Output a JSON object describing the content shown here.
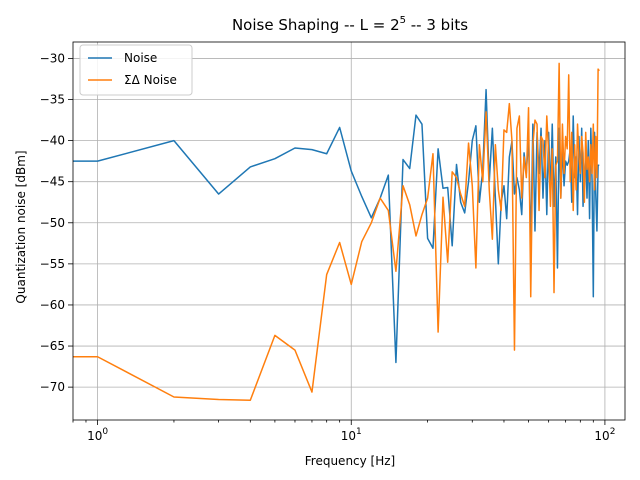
{
  "chart_data": {
    "type": "line",
    "title": "Noise Shaping -- L = 2",
    "title_exponent": "5",
    "title_suffix": " -- 3 bits",
    "xlabel": "Frequency [Hz]",
    "ylabel": "Quantization noise [dBm]",
    "xscale": "log",
    "xlim": [
      0.8,
      120
    ],
    "ylim": [
      -74,
      -28
    ],
    "x_ticks": [
      {
        "value": 1,
        "base": "10",
        "exp": "0"
      },
      {
        "value": 10,
        "base": "10",
        "exp": "1"
      },
      {
        "value": 100,
        "base": "10",
        "exp": "2"
      }
    ],
    "y_ticks": [
      -30,
      -35,
      -40,
      -45,
      -50,
      -55,
      -60,
      -65,
      -70
    ],
    "y_tick_labels": [
      "−30",
      "−35",
      "−40",
      "−45",
      "−50",
      "−55",
      "−60",
      "−65",
      "−70"
    ],
    "grid": true,
    "legend_position": "upper-left",
    "x": [
      0.8,
      1,
      2,
      3,
      4,
      5,
      6,
      7,
      8,
      9,
      10,
      11,
      12,
      13,
      14,
      15,
      16,
      17,
      18,
      19,
      20,
      21,
      22,
      23,
      24,
      25,
      26,
      27,
      28,
      29,
      30,
      31,
      32,
      33,
      34,
      35,
      36,
      37,
      38,
      39,
      40,
      41,
      42,
      43,
      44,
      45,
      46,
      47,
      48,
      49,
      50,
      51,
      52,
      53,
      54,
      55,
      56,
      57,
      58,
      59,
      60,
      61,
      62,
      63,
      64,
      65,
      66,
      67,
      68,
      69,
      70,
      71,
      72,
      73,
      74,
      75,
      76,
      77,
      78,
      79,
      80,
      81,
      82,
      83,
      84,
      85,
      86,
      87,
      88,
      89,
      90,
      91,
      92,
      93,
      94,
      95
    ],
    "series": [
      {
        "name": "Noise",
        "color": "#1f77b4",
        "values": [
          -42.5,
          -42.5,
          -40,
          -46.5,
          -43.2,
          -42.2,
          -40.9,
          -41.1,
          -41.6,
          -38.4,
          -43.7,
          -46.8,
          -49.4,
          -47.0,
          -44.2,
          -67.0,
          -42.3,
          -43.4,
          -36.9,
          -38.0,
          -51.9,
          -53.1,
          -41.0,
          -45.8,
          -45.7,
          -52.8,
          -42.9,
          -47.5,
          -48.8,
          -45.0,
          -40.0,
          -38.2,
          -47.5,
          -43.5,
          -33.8,
          -45.0,
          -38.5,
          -47.0,
          -55.0,
          -47.5,
          -45.5,
          -49.5,
          -42.0,
          -40.1,
          -46.5,
          -44.5,
          -46.0,
          -49.0,
          -41.5,
          -44.0,
          -39.5,
          -53.0,
          -38.0,
          -51.0,
          -39.0,
          -44.0,
          -38.5,
          -47.0,
          -40.0,
          -49.0,
          -39.0,
          -46.5,
          -38.0,
          -48.0,
          -42.0,
          -55.5,
          -38.5,
          -47.0,
          -40.5,
          -45.5,
          -42.5,
          -43.0,
          -42.5,
          -41.0,
          -47.5,
          -37.0,
          -44.5,
          -42.0,
          -49.0,
          -39.5,
          -45.0,
          -38.5,
          -48.0,
          -44.0,
          -42.0,
          -47.0,
          -40.0,
          -49.5,
          -38.5,
          -45.0,
          -59.0,
          -39.0,
          -46.5,
          -51.0,
          -43.0,
          -43.0
        ]
      },
      {
        "name": "ΣΔ Noise",
        "color": "#ff7f0e",
        "values": [
          -66.3,
          -66.3,
          -71.2,
          -71.5,
          -71.6,
          -63.7,
          -65.5,
          -70.6,
          -56.3,
          -52.4,
          -57.5,
          -52.3,
          -50.0,
          -47.0,
          -48.5,
          -55.9,
          -45.5,
          -47.8,
          -51.6,
          -49.0,
          -47.0,
          -41.6,
          -63.3,
          -46.9,
          -54.8,
          -43.8,
          -44.5,
          -46.5,
          -48.0,
          -40.3,
          -45.5,
          -55.5,
          -40.5,
          -45.0,
          -36.5,
          -46.0,
          -52.0,
          -40.5,
          -46.0,
          -48.5,
          -38.7,
          -39.0,
          -35.5,
          -40.0,
          -65.5,
          -38.5,
          -37.0,
          -47.0,
          -42.0,
          -44.5,
          -36.0,
          -59.0,
          -40.5,
          -37.5,
          -38.0,
          -48.5,
          -39.5,
          -40.0,
          -44.5,
          -37.0,
          -41.5,
          -48.0,
          -41.0,
          -58.5,
          -43.0,
          -42.5,
          -30.6,
          -47.0,
          -38.0,
          -44.0,
          -39.5,
          -41.0,
          -32.0,
          -45.0,
          -39.0,
          -48.5,
          -40.5,
          -46.0,
          -38.0,
          -42.0,
          -44.0,
          -39.5,
          -41.5,
          -47.5,
          -39.0,
          -43.5,
          -42.0,
          -45.0,
          -40.5,
          -44.0,
          -38.0,
          -46.0,
          -39.5,
          -44.5,
          -31.3,
          -31.5
        ]
      }
    ]
  }
}
